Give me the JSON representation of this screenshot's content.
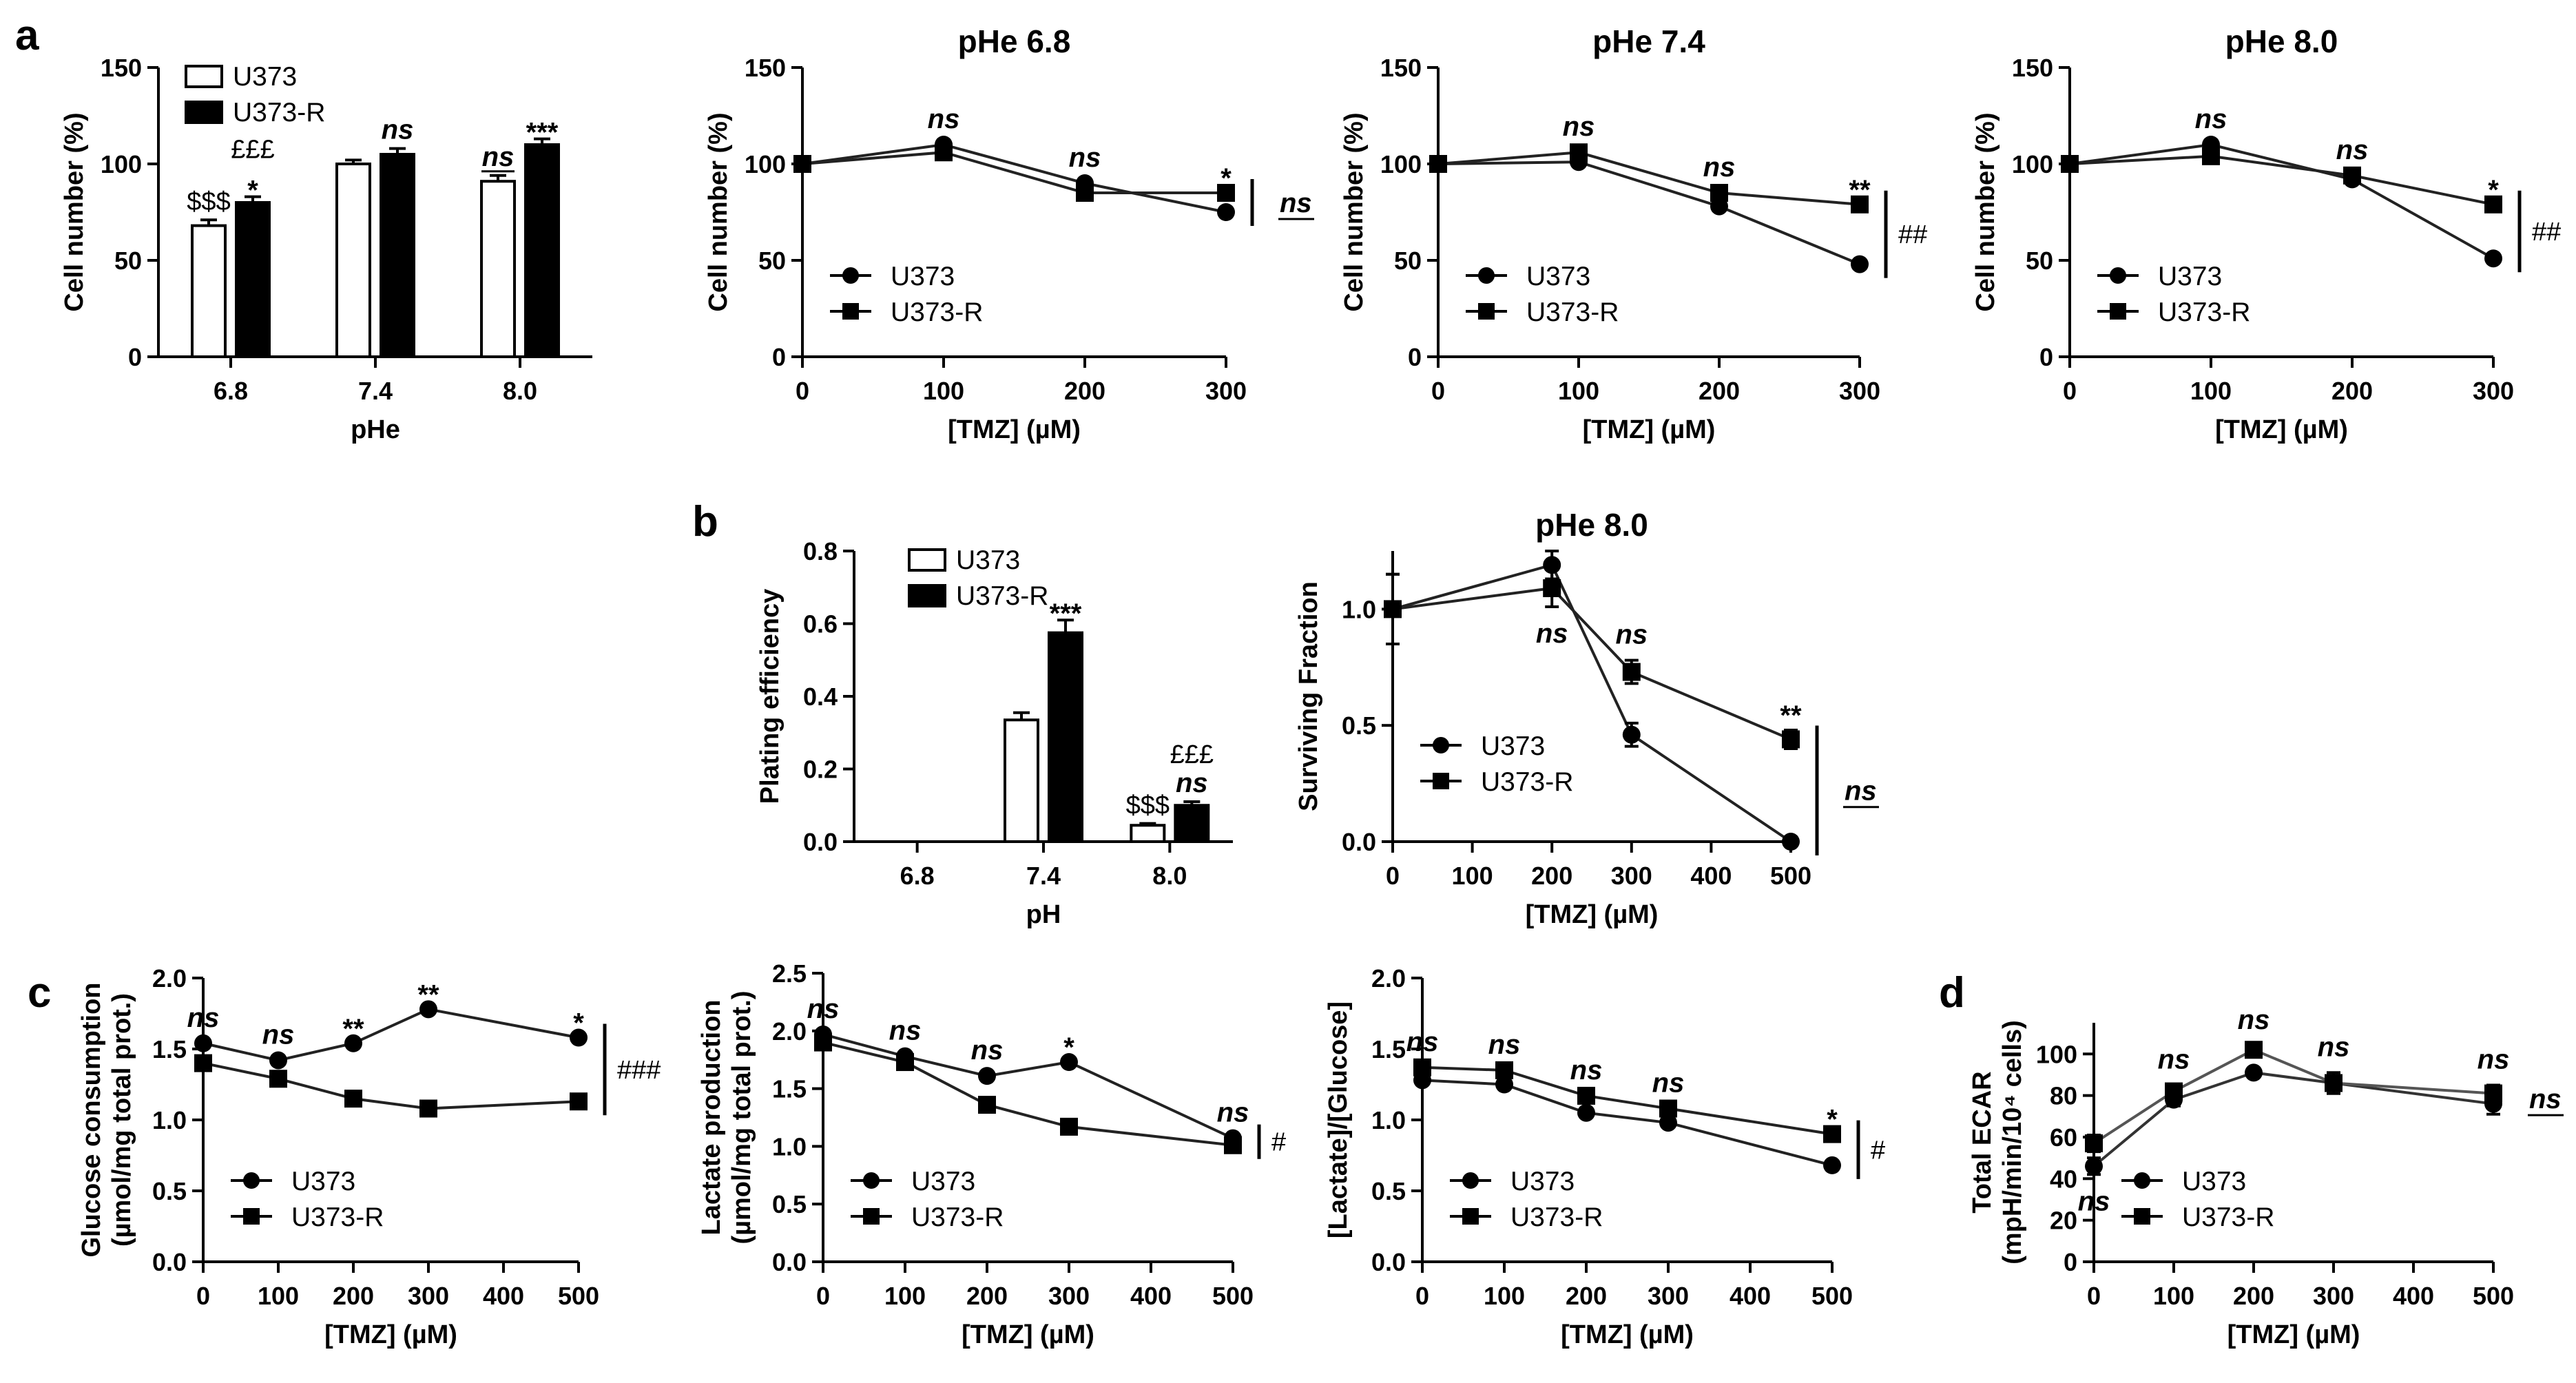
{
  "panel_labels": [
    "a",
    "b",
    "c",
    "d"
  ],
  "chart_data": [
    {
      "id": "a1",
      "panel": "a",
      "type": "bar",
      "title": "",
      "xlabel": "pHe",
      "ylabel": "Cell number (%)",
      "categories": [
        "6.8",
        "7.4",
        "8.0"
      ],
      "series": [
        {
          "name": "U373",
          "values": [
            68,
            100,
            91
          ],
          "errors": [
            3,
            2,
            3
          ]
        },
        {
          "name": "U373-R",
          "values": [
            80,
            105,
            110
          ],
          "errors": [
            3,
            3,
            3
          ]
        }
      ],
      "ylim": [
        0,
        150
      ],
      "yticks": [
        "0",
        "50",
        "100",
        "150"
      ],
      "legend": "top-left",
      "annotations": [
        {
          "category": 0,
          "series": 0,
          "text": "$$$"
        },
        {
          "category": 0,
          "series": 1,
          "text": "£££"
        },
        {
          "category": 0,
          "series": 1,
          "text": "*"
        },
        {
          "category": 1,
          "series": 1,
          "text": "ns"
        },
        {
          "category": 2,
          "series": 0,
          "text": "ns"
        },
        {
          "category": 2,
          "series": 1,
          "text": "***"
        }
      ]
    },
    {
      "id": "a2",
      "panel": "a",
      "type": "line",
      "title": "pHe 6.8",
      "xlabel": "[TMZ] (µM)",
      "ylabel": "Cell number (%)",
      "x": [
        0,
        100,
        200,
        300
      ],
      "series": [
        {
          "name": "U373",
          "values": [
            100,
            110,
            90,
            75
          ]
        },
        {
          "name": "U373-R",
          "values": [
            100,
            106,
            85,
            85
          ]
        }
      ],
      "xlim": [
        0,
        300
      ],
      "ylim": [
        0,
        150
      ],
      "xticks": [
        "0",
        "100",
        "200",
        "300"
      ],
      "yticks": [
        "0",
        "50",
        "100",
        "150"
      ],
      "legend": "bottom-left",
      "annotations": [
        {
          "x": 100,
          "text": "ns"
        },
        {
          "x": 200,
          "text": "ns"
        },
        {
          "x": 300,
          "text": "*"
        }
      ],
      "bracket": "ns"
    },
    {
      "id": "a3",
      "panel": "a",
      "type": "line",
      "title": "pHe 7.4",
      "xlabel": "[TMZ] (µM)",
      "ylabel": "Cell number (%)",
      "x": [
        0,
        100,
        200,
        300
      ],
      "series": [
        {
          "name": "U373",
          "values": [
            100,
            101,
            78,
            48
          ]
        },
        {
          "name": "U373-R",
          "values": [
            100,
            106,
            85,
            79
          ]
        }
      ],
      "xlim": [
        0,
        300
      ],
      "ylim": [
        0,
        150
      ],
      "xticks": [
        "0",
        "100",
        "200",
        "300"
      ],
      "yticks": [
        "0",
        "50",
        "100",
        "150"
      ],
      "legend": "bottom-left",
      "annotations": [
        {
          "x": 100,
          "text": "ns"
        },
        {
          "x": 200,
          "text": "ns"
        },
        {
          "x": 300,
          "text": "**"
        }
      ],
      "bracket": "##"
    },
    {
      "id": "a4",
      "panel": "a",
      "type": "line",
      "title": "pHe 8.0",
      "xlabel": "[TMZ] (µM)",
      "ylabel": "Cell number (%)",
      "x": [
        0,
        100,
        200,
        300
      ],
      "series": [
        {
          "name": "U373",
          "values": [
            100,
            110,
            92,
            51
          ]
        },
        {
          "name": "U373-R",
          "values": [
            100,
            104,
            94,
            79
          ]
        }
      ],
      "xlim": [
        0,
        300
      ],
      "ylim": [
        0,
        150
      ],
      "xticks": [
        "0",
        "100",
        "200",
        "300"
      ],
      "yticks": [
        "0",
        "50",
        "100",
        "150"
      ],
      "legend": "bottom-left",
      "annotations": [
        {
          "x": 100,
          "text": "ns"
        },
        {
          "x": 200,
          "text": "ns"
        },
        {
          "x": 300,
          "text": "*"
        }
      ],
      "bracket": "##"
    },
    {
      "id": "b1",
      "panel": "b",
      "type": "bar",
      "title": "",
      "xlabel": "pH",
      "ylabel": "Plating efficiency",
      "categories": [
        "6.8",
        "7.4",
        "8.0"
      ],
      "series": [
        {
          "name": "U373",
          "values": [
            0,
            0.335,
            0.045
          ],
          "errors": [
            0,
            0.02,
            0.005
          ]
        },
        {
          "name": "U373-R",
          "values": [
            0,
            0.575,
            0.1
          ],
          "errors": [
            0,
            0.035,
            0.01
          ]
        }
      ],
      "ylim": [
        0,
        0.8
      ],
      "yticks": [
        "0.0",
        "0.2",
        "0.4",
        "0.6",
        "0.8"
      ],
      "legend": "top-left",
      "annotations": [
        {
          "category": 1,
          "series": 1,
          "text": "***"
        },
        {
          "category": 2,
          "series": 0,
          "text": "$$$"
        },
        {
          "category": 2,
          "series": 1,
          "text": "£££"
        },
        {
          "category": 2,
          "series": 1,
          "text": "ns"
        }
      ]
    },
    {
      "id": "b2",
      "panel": "b",
      "type": "line",
      "title": "pHe 8.0",
      "xlabel": "[TMZ] (µM)",
      "ylabel": "Surviving Fraction",
      "x": [
        0,
        200,
        300,
        500
      ],
      "series": [
        {
          "name": "U373",
          "values": [
            1.0,
            1.19,
            0.46,
            0.0
          ],
          "errors": [
            0.15,
            0.06,
            0.05,
            0.0
          ]
        },
        {
          "name": "U373-R",
          "values": [
            1.0,
            1.09,
            0.73,
            0.44
          ],
          "errors": [
            0.15,
            0.08,
            0.05,
            0.04
          ]
        }
      ],
      "xlim": [
        0,
        500
      ],
      "ylim": [
        0,
        1.25
      ],
      "xticks": [
        "0",
        "100",
        "200",
        "300",
        "400",
        "500"
      ],
      "yticks": [
        "0.0",
        "0.5",
        "1.0"
      ],
      "legend": "bottom-left",
      "annotations": [
        {
          "x": 200,
          "text": "ns",
          "pos": "below"
        },
        {
          "x": 300,
          "text": "ns"
        },
        {
          "x": 500,
          "text": "**"
        }
      ],
      "bracket": "ns"
    },
    {
      "id": "c1",
      "panel": "c",
      "type": "line",
      "title": "",
      "xlabel": "[TMZ] (µM)",
      "ylabel": "Glucose consumption",
      "ylabel2": "(µmol/mg total prot.)",
      "x": [
        0,
        100,
        200,
        300,
        500
      ],
      "series": [
        {
          "name": "U373",
          "values": [
            1.54,
            1.42,
            1.54,
            1.78,
            1.58
          ]
        },
        {
          "name": "U373-R",
          "values": [
            1.4,
            1.29,
            1.15,
            1.08,
            1.13
          ]
        }
      ],
      "xlim": [
        0,
        500
      ],
      "ylim": [
        0,
        2.0
      ],
      "xticks": [
        "0",
        "100",
        "200",
        "300",
        "400",
        "500"
      ],
      "yticks": [
        "0.0",
        "0.5",
        "1.0",
        "1.5",
        "2.0"
      ],
      "legend": "bottom-left",
      "annotations": [
        {
          "x": 0,
          "text": "ns"
        },
        {
          "x": 100,
          "text": "ns"
        },
        {
          "x": 200,
          "text": "**"
        },
        {
          "x": 300,
          "text": "**"
        },
        {
          "x": 500,
          "text": "*"
        }
      ],
      "bracket": "###"
    },
    {
      "id": "c2",
      "panel": "c",
      "type": "line",
      "title": "",
      "xlabel": "[TMZ] (µM)",
      "ylabel": "Lactate production",
      "ylabel2": "(µmol/mg total prot.)",
      "x": [
        0,
        100,
        200,
        300,
        500
      ],
      "series": [
        {
          "name": "U373",
          "values": [
            1.97,
            1.78,
            1.61,
            1.73,
            1.07
          ]
        },
        {
          "name": "U373-R",
          "values": [
            1.9,
            1.73,
            1.36,
            1.17,
            1.01
          ]
        }
      ],
      "xlim": [
        0,
        500
      ],
      "ylim": [
        0,
        2.5
      ],
      "xticks": [
        "0",
        "100",
        "200",
        "300",
        "400",
        "500"
      ],
      "yticks": [
        "0.0",
        "0.5",
        "1.0",
        "1.5",
        "2.0",
        "2.5"
      ],
      "legend": "bottom-left",
      "annotations": [
        {
          "x": 0,
          "text": "ns"
        },
        {
          "x": 100,
          "text": "ns"
        },
        {
          "x": 200,
          "text": "ns"
        },
        {
          "x": 300,
          "text": "*"
        },
        {
          "x": 500,
          "text": "ns"
        }
      ],
      "bracket": "#"
    },
    {
      "id": "c3",
      "panel": "c",
      "type": "line",
      "title": "",
      "xlabel": "[TMZ] (µM)",
      "ylabel": "[Lactate]/[Glucose]",
      "x": [
        0,
        100,
        200,
        300,
        500
      ],
      "series": [
        {
          "name": "U373",
          "values": [
            1.28,
            1.25,
            1.05,
            0.98,
            0.68
          ]
        },
        {
          "name": "U373-R",
          "values": [
            1.37,
            1.35,
            1.17,
            1.08,
            0.9
          ]
        }
      ],
      "xlim": [
        0,
        500
      ],
      "ylim": [
        0,
        2.0
      ],
      "xticks": [
        "0",
        "100",
        "200",
        "300",
        "400",
        "500"
      ],
      "yticks": [
        "0.0",
        "0.5",
        "1.0",
        "1.5",
        "2.0"
      ],
      "legend": "bottom-left",
      "annotations": [
        {
          "x": 0,
          "text": "ns"
        },
        {
          "x": 100,
          "text": "ns"
        },
        {
          "x": 200,
          "text": "ns"
        },
        {
          "x": 300,
          "text": "ns"
        },
        {
          "x": 500,
          "text": "*"
        }
      ],
      "bracket": "#"
    },
    {
      "id": "d1",
      "panel": "d",
      "type": "line",
      "title": "",
      "xlabel": "[TMZ] (µM)",
      "ylabel": "Total ECAR",
      "ylabel2": "(mpH/min/10⁴ cells)",
      "x": [
        0,
        100,
        200,
        300,
        500
      ],
      "series": [
        {
          "name": "U373",
          "values": [
            46,
            78,
            91,
            86,
            76
          ],
          "errors": [
            4,
            3,
            2,
            5,
            5
          ]
        },
        {
          "name": "U373-R",
          "values": [
            57,
            82,
            102,
            86,
            81
          ],
          "errors": [
            4,
            3,
            2,
            5,
            4
          ]
        }
      ],
      "xlim": [
        0,
        500
      ],
      "ylim": [
        0,
        115
      ],
      "xticks": [
        "0",
        "100",
        "200",
        "300",
        "400",
        "500"
      ],
      "yticks": [
        "0",
        "20",
        "40",
        "60",
        "80",
        "100"
      ],
      "legend": "bottom-left",
      "annotations": [
        {
          "x": 0,
          "text": "ns",
          "pos": "below"
        },
        {
          "x": 100,
          "text": "ns"
        },
        {
          "x": 200,
          "text": "ns"
        },
        {
          "x": 300,
          "text": "ns"
        },
        {
          "x": 500,
          "text": "ns"
        }
      ],
      "bracket": "ns"
    }
  ]
}
